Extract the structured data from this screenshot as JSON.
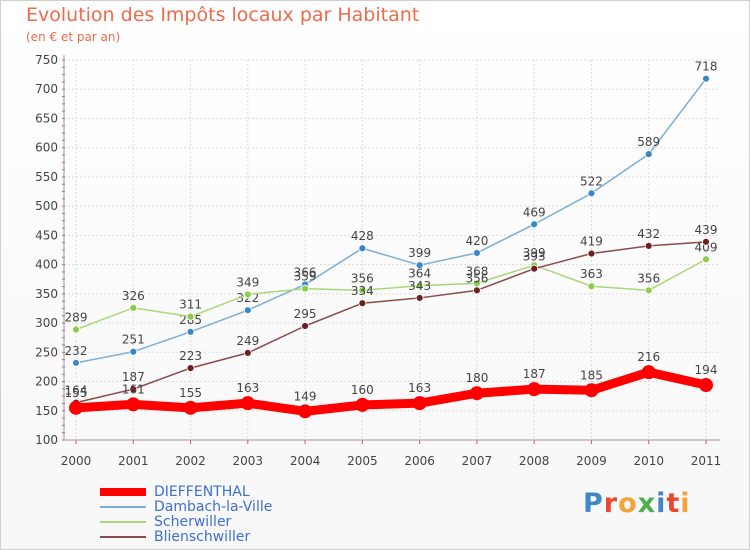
{
  "title": "Evolution des Impôts locaux par Habitant",
  "subtitle": "(en € et par an)",
  "logo": {
    "letters": [
      "P",
      "r",
      "o",
      "x",
      "i",
      "t",
      "i"
    ],
    "colors": [
      "#3f88c5",
      "#e8492e",
      "#f2a33a",
      "#4caf50",
      "#3f88c5",
      "#e8492e",
      "#f2a33a"
    ]
  },
  "chart_data": {
    "type": "line",
    "x": [
      "2000",
      "2001",
      "2002",
      "2003",
      "2004",
      "2005",
      "2006",
      "2007",
      "2008",
      "2009",
      "2010",
      "2011"
    ],
    "ylim": [
      100,
      750
    ],
    "yticks": [
      "100",
      "150",
      "200",
      "250",
      "300",
      "350",
      "400",
      "450",
      "500",
      "550",
      "600",
      "650",
      "700",
      "750"
    ],
    "grid": true,
    "legend_position": "bottom-left",
    "series": [
      {
        "name": "DIEFFENTHAL",
        "color": "#ff0000",
        "marker": "#ff0000",
        "values": [
          155,
          161,
          155,
          163,
          149,
          160,
          163,
          180,
          187,
          185,
          216,
          194
        ],
        "labels": [
          "155",
          "161",
          "155",
          "163",
          "149",
          "160",
          "163",
          "180",
          "187",
          "185",
          "216",
          "194"
        ]
      },
      {
        "name": "Dambach-la-Ville",
        "color": "#7aaed6",
        "marker": "#3a87c8",
        "values": [
          232,
          251,
          285,
          322,
          366,
          428,
          399,
          420,
          469,
          522,
          589,
          718
        ],
        "labels": [
          "232",
          "251",
          "285",
          "322",
          "366",
          "428",
          "399",
          "420",
          "469",
          "522",
          "589",
          "718"
        ]
      },
      {
        "name": "Scherwiller",
        "color": "#a8d878",
        "marker": "#8ccc4a",
        "values": [
          289,
          326,
          311,
          349,
          359,
          356,
          364,
          368,
          399,
          363,
          356,
          409
        ],
        "labels": [
          "289",
          "326",
          "311",
          "349",
          "359",
          "356",
          "364",
          "368",
          "399",
          "363",
          "356",
          "409"
        ]
      },
      {
        "name": "Blienschwiller",
        "color": "#8a4a4a",
        "marker": "#6e1f1f",
        "values": [
          164,
          187,
          223,
          249,
          295,
          334,
          343,
          356,
          393,
          419,
          432,
          439
        ],
        "labels": [
          "164",
          "187",
          "223",
          "249",
          "295",
          "334",
          "343",
          "356",
          "393",
          "419",
          "432",
          "439"
        ]
      }
    ]
  }
}
